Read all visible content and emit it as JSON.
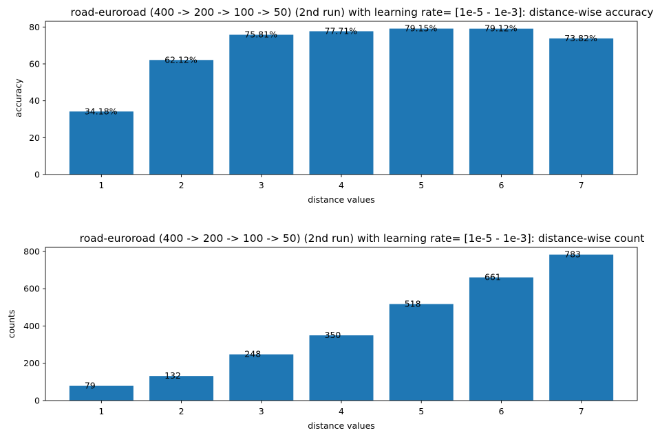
{
  "chart_data": [
    {
      "type": "bar",
      "title": "road-euroroad (400 -> 200 -> 100 -> 50) (2nd run) with learning rate= [1e-5 - 1e-3]: distance-wise accuracy",
      "xlabel": "distance values",
      "ylabel": "accuracy",
      "categories": [
        "1",
        "2",
        "3",
        "4",
        "5",
        "6",
        "7"
      ],
      "values": [
        34.18,
        62.12,
        75.81,
        77.71,
        79.15,
        79.12,
        73.82
      ],
      "data_labels": [
        "34.18%",
        "62.12%",
        "75.81%",
        "77.71%",
        "79.15%",
        "79.12%",
        "73.82%"
      ],
      "yticks": [
        0,
        20,
        40,
        60,
        80
      ],
      "ylim": [
        0,
        83.1
      ],
      "bar_color": "#1f77b4",
      "grid": false
    },
    {
      "type": "bar",
      "title": "road-euroroad (400 -> 200 -> 100 -> 50) (2nd run) with learning rate= [1e-5 - 1e-3]: distance-wise count",
      "xlabel": "distance values",
      "ylabel": "counts",
      "categories": [
        "1",
        "2",
        "3",
        "4",
        "5",
        "6",
        "7"
      ],
      "values": [
        79,
        132,
        248,
        350,
        518,
        661,
        783
      ],
      "data_labels": [
        "79",
        "132",
        "248",
        "350",
        "518",
        "661",
        "783"
      ],
      "yticks": [
        0,
        200,
        400,
        600,
        800
      ],
      "ylim": [
        0,
        822
      ],
      "bar_color": "#1f77b4",
      "grid": false
    }
  ]
}
